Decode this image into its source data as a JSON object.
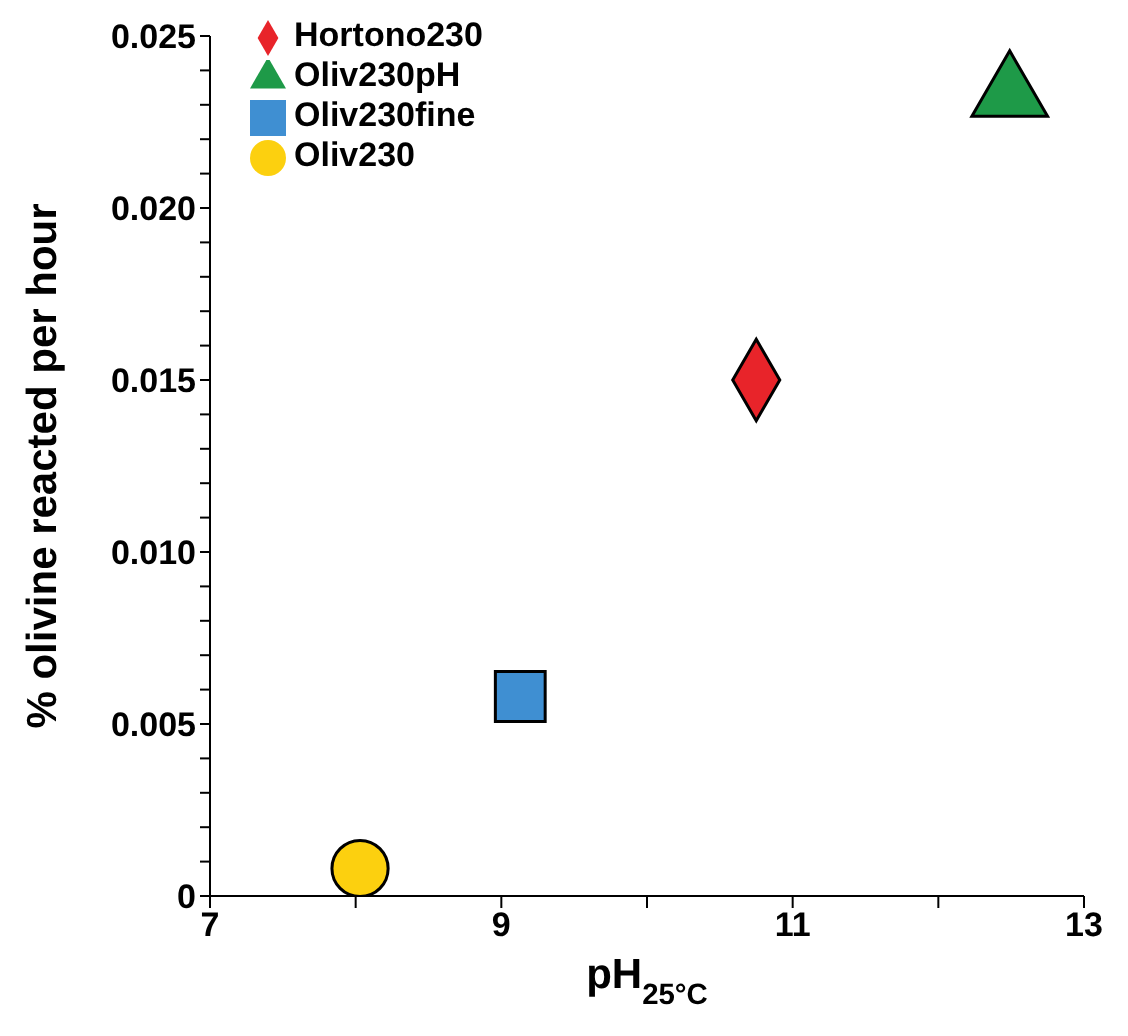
{
  "chart_data": {
    "type": "scatter",
    "xlabel": "pH$_{25°C}$",
    "ylabel": "% olivine reacted per hour",
    "xlim": [
      7,
      13
    ],
    "xticks": [
      7,
      {
        "value": 8,
        "label": null
      },
      9,
      {
        "value": 10,
        "label": null
      },
      11,
      {
        "value": 12,
        "label": null
      },
      13
    ],
    "ylim": [
      0,
      0.025
    ],
    "yticks": [
      0,
      {
        "value": 0.001,
        "label": null
      },
      {
        "value": 0.002,
        "label": null
      },
      {
        "value": 0.003,
        "label": null
      },
      {
        "value": 0.004,
        "label": null
      },
      0.005,
      {
        "value": 0.006,
        "label": null
      },
      {
        "value": 0.007,
        "label": null
      },
      {
        "value": 0.008,
        "label": null
      },
      {
        "value": 0.009,
        "label": null
      },
      {
        "value": 0.01,
        "label": "0.010"
      },
      {
        "value": 0.011,
        "label": null
      },
      {
        "value": 0.012,
        "label": null
      },
      {
        "value": 0.013,
        "label": null
      },
      {
        "value": 0.014,
        "label": null
      },
      {
        "value": 0.015,
        "label": "0.015"
      },
      {
        "value": 0.016,
        "label": null
      },
      {
        "value": 0.017,
        "label": null
      },
      {
        "value": 0.018,
        "label": null
      },
      {
        "value": 0.019,
        "label": null
      },
      {
        "value": 0.02,
        "label": "0.020"
      },
      {
        "value": 0.021,
        "label": null
      },
      {
        "value": 0.022,
        "label": null
      },
      {
        "value": 0.023,
        "label": null
      },
      {
        "value": 0.024,
        "label": null
      },
      0.025
    ],
    "legend": "top left",
    "grid": false,
    "series": [
      {
        "name": "Hortono230",
        "color": "#e8242a",
        "marker": "diamond",
        "x": [
          10.75
        ],
        "values": [
          0.015
        ]
      },
      {
        "name": "Oliv230pH",
        "color": "#1e9a48",
        "marker": "triangle",
        "x": [
          12.49
        ],
        "values": [
          0.0233
        ]
      },
      {
        "name": "Oliv230fine",
        "color": "#3f8fd2",
        "marker": "square",
        "x": [
          9.13
        ],
        "values": [
          0.0058
        ]
      },
      {
        "name": "Oliv230",
        "color": "#fcd00f",
        "marker": "circle",
        "x": [
          8.03
        ],
        "values": [
          0.0008
        ]
      }
    ]
  }
}
